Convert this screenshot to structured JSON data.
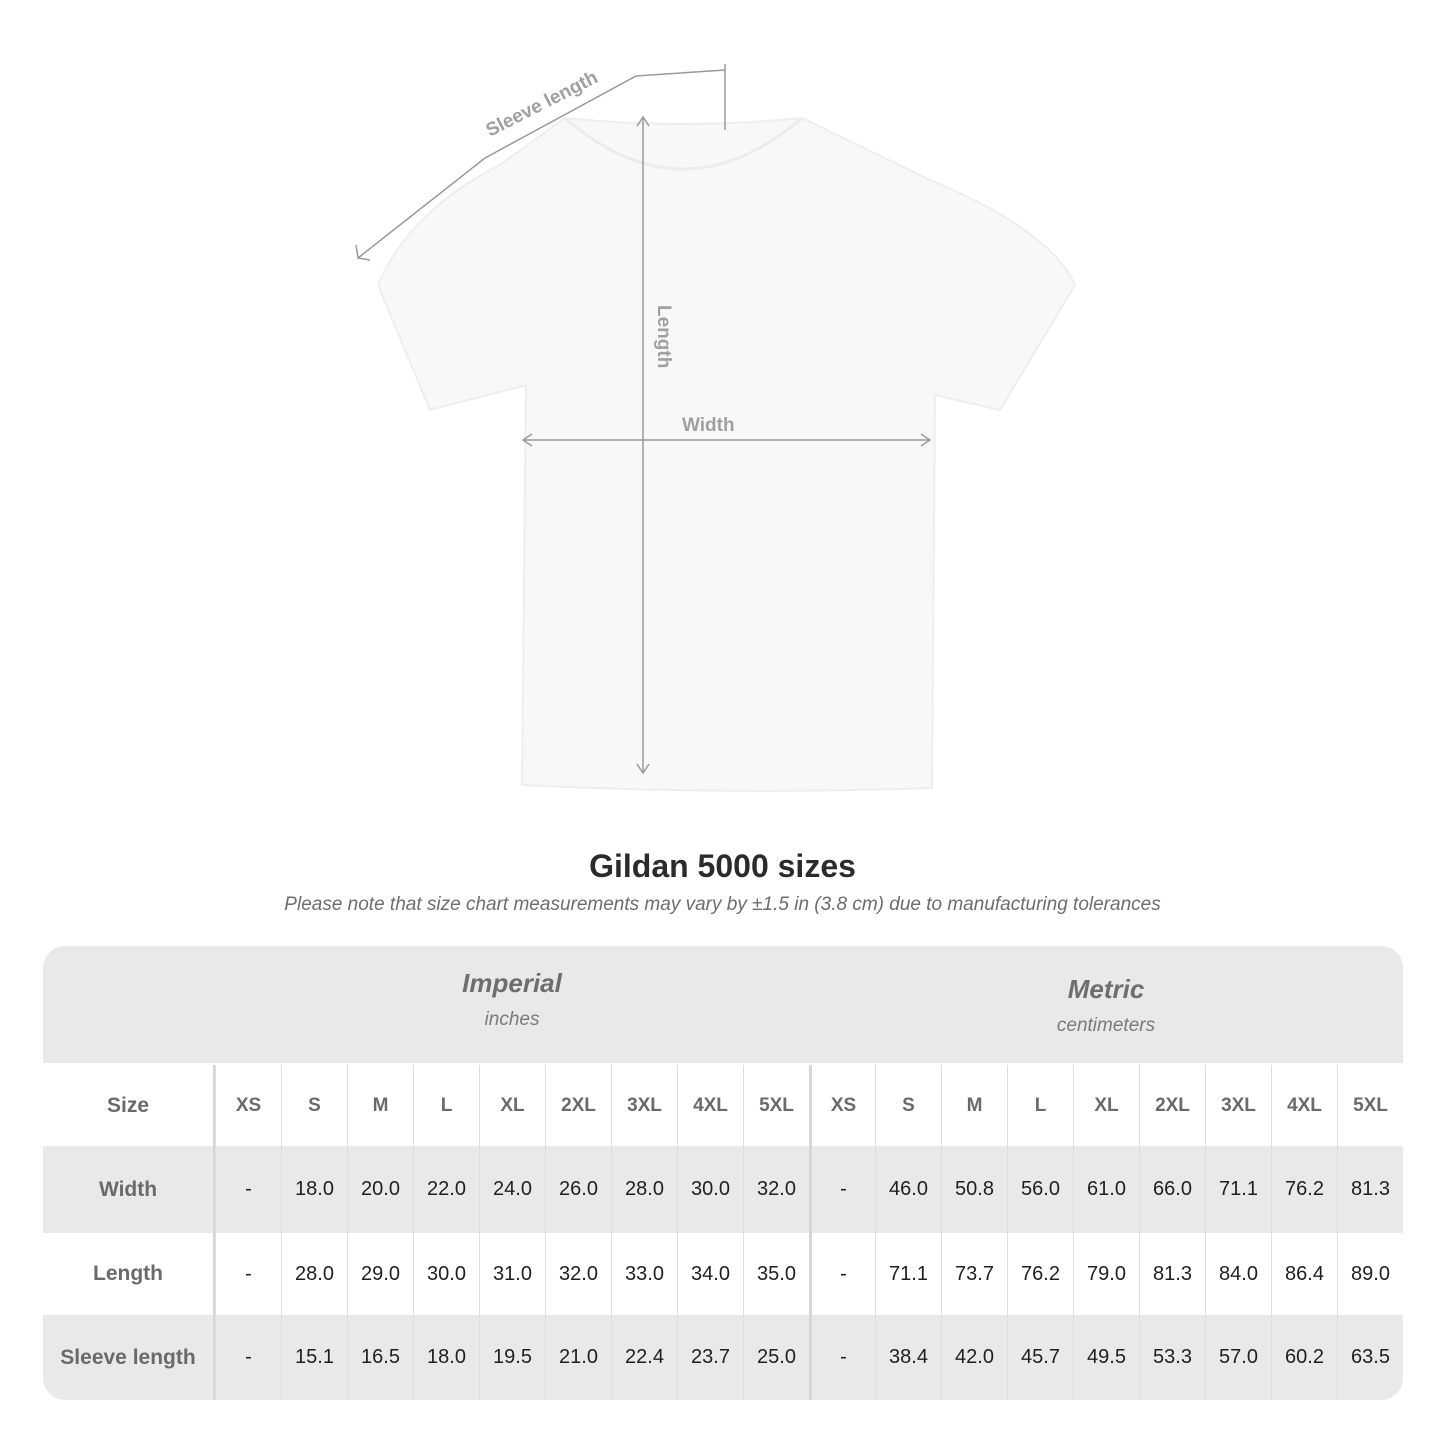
{
  "diagram": {
    "sleeve_label": "Sleeve length",
    "length_label": "Length",
    "width_label": "Width"
  },
  "header": {
    "title": "Gildan 5000 sizes",
    "note": "Please note that size chart measurements may vary by ±1.5 in (3.8 cm) due to manufacturing tolerances"
  },
  "table": {
    "imperial": {
      "name": "Imperial",
      "unit": "inches"
    },
    "metric": {
      "name": "Metric",
      "unit": "centimeters"
    },
    "size_label": "Size",
    "sizes": [
      "XS",
      "S",
      "M",
      "L",
      "XL",
      "2XL",
      "3XL",
      "4XL",
      "5XL"
    ],
    "rows": [
      {
        "label": "Width",
        "imperial": [
          "-",
          "18.0",
          "20.0",
          "22.0",
          "24.0",
          "26.0",
          "28.0",
          "30.0",
          "32.0"
        ],
        "metric": [
          "-",
          "46.0",
          "50.8",
          "56.0",
          "61.0",
          "66.0",
          "71.1",
          "76.2",
          "81.3"
        ]
      },
      {
        "label": "Length",
        "imperial": [
          "-",
          "28.0",
          "29.0",
          "30.0",
          "31.0",
          "32.0",
          "33.0",
          "34.0",
          "35.0"
        ],
        "metric": [
          "-",
          "71.1",
          "73.7",
          "76.2",
          "79.0",
          "81.3",
          "84.0",
          "86.4",
          "89.0"
        ]
      },
      {
        "label": "Sleeve length",
        "imperial": [
          "-",
          "15.1",
          "16.5",
          "18.0",
          "19.5",
          "21.0",
          "22.4",
          "23.7",
          "25.0"
        ],
        "metric": [
          "-",
          "38.4",
          "42.0",
          "45.7",
          "49.5",
          "53.3",
          "57.0",
          "60.2",
          "63.5"
        ]
      }
    ]
  }
}
